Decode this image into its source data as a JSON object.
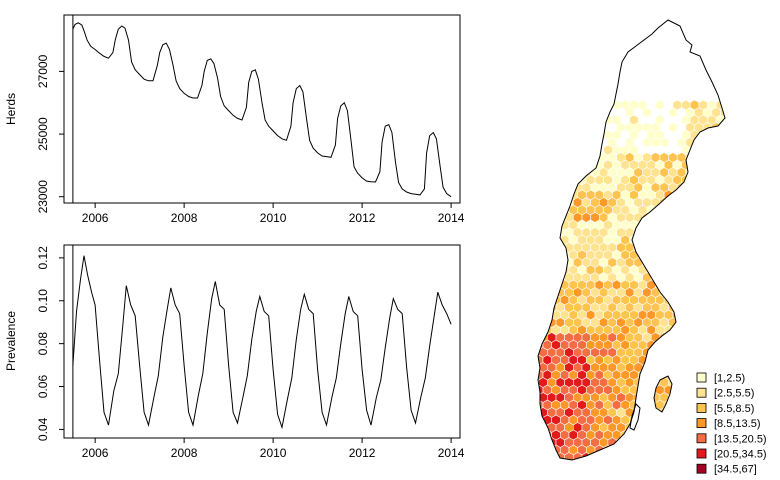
{
  "chart_data": [
    {
      "type": "line",
      "title": "",
      "xlabel": "",
      "ylabel": "Herds",
      "xlim": [
        2005.3,
        2014.2
      ],
      "ylim": [
        22800,
        28800
      ],
      "xticks": [
        2006,
        2008,
        2010,
        2012,
        2014
      ],
      "xtick_labels": [
        "2006",
        "2008",
        "2010",
        "2012",
        "2014"
      ],
      "yticks": [
        23000,
        25000,
        27000
      ],
      "ytick_labels": [
        "23000",
        "25000",
        "27000"
      ],
      "vline": 2005.5,
      "series": [
        {
          "color": "#000000",
          "x": [
            2005.5,
            2005.55,
            2005.62,
            2005.7,
            2005.75,
            2005.82,
            2005.9,
            2006.0,
            2006.1,
            2006.2,
            2006.3,
            2006.4,
            2006.45,
            2006.52,
            2006.6,
            2006.67,
            2006.75,
            2006.82,
            2006.9,
            2007.0,
            2007.1,
            2007.2,
            2007.3,
            2007.4,
            2007.45,
            2007.52,
            2007.6,
            2007.67,
            2007.75,
            2007.82,
            2007.9,
            2008.0,
            2008.1,
            2008.2,
            2008.3,
            2008.4,
            2008.45,
            2008.52,
            2008.6,
            2008.67,
            2008.75,
            2008.82,
            2008.9,
            2009.0,
            2009.1,
            2009.2,
            2009.3,
            2009.4,
            2009.45,
            2009.52,
            2009.6,
            2009.67,
            2009.75,
            2009.82,
            2009.9,
            2010.0,
            2010.1,
            2010.2,
            2010.3,
            2010.4,
            2010.45,
            2010.52,
            2010.6,
            2010.67,
            2010.75,
            2010.82,
            2010.9,
            2011.0,
            2011.1,
            2011.2,
            2011.3,
            2011.4,
            2011.45,
            2011.52,
            2011.6,
            2011.67,
            2011.75,
            2011.82,
            2011.9,
            2012.0,
            2012.1,
            2012.2,
            2012.3,
            2012.4,
            2012.45,
            2012.52,
            2012.6,
            2012.67,
            2012.75,
            2012.82,
            2012.9,
            2013.0,
            2013.1,
            2013.2,
            2013.3,
            2013.4,
            2013.45,
            2013.52,
            2013.6,
            2013.67,
            2013.75,
            2013.82,
            2013.9,
            2014.0
          ],
          "y": [
            28350,
            28500,
            28550,
            28480,
            28300,
            28000,
            27800,
            27700,
            27580,
            27480,
            27420,
            27600,
            28000,
            28350,
            28450,
            28380,
            28000,
            27300,
            27050,
            26900,
            26750,
            26700,
            26700,
            27200,
            27600,
            27850,
            27900,
            27700,
            27200,
            26700,
            26450,
            26300,
            26200,
            26150,
            26150,
            26550,
            27000,
            27350,
            27400,
            27250,
            26800,
            26200,
            25900,
            25750,
            25600,
            25500,
            25450,
            25850,
            26650,
            27000,
            27050,
            26750,
            26000,
            25450,
            25250,
            25100,
            24950,
            24850,
            24800,
            25250,
            26000,
            26450,
            26550,
            26350,
            25500,
            24800,
            24550,
            24400,
            24300,
            24280,
            24260,
            24650,
            25500,
            25900,
            26000,
            25750,
            24800,
            23950,
            23750,
            23600,
            23500,
            23480,
            23470,
            23800,
            24750,
            25250,
            25300,
            25050,
            24100,
            23450,
            23250,
            23150,
            23100,
            23080,
            23060,
            23250,
            24400,
            24950,
            25050,
            24850,
            24000,
            23300,
            23100,
            23000
          ]
        }
      ]
    },
    {
      "type": "line",
      "title": "",
      "xlabel": "",
      "ylabel": "Prevalence",
      "xlim": [
        2005.3,
        2014.2
      ],
      "ylim": [
        0.036,
        0.126
      ],
      "xticks": [
        2006,
        2008,
        2010,
        2012,
        2014
      ],
      "xtick_labels": [
        "2006",
        "2008",
        "2010",
        "2012",
        "2014"
      ],
      "yticks": [
        0.04,
        0.06,
        0.08,
        0.1,
        0.12
      ],
      "ytick_labels": [
        "0.04",
        "0.06",
        "0.08",
        "0.10",
        "0.12"
      ],
      "vline": 2005.5,
      "series": [
        {
          "color": "#000000",
          "x": [
            2005.5,
            2005.58,
            2005.67,
            2005.75,
            2005.83,
            2005.92,
            2006.0,
            2006.1,
            2006.2,
            2006.3,
            2006.42,
            2006.52,
            2006.62,
            2006.7,
            2006.8,
            2006.9,
            2007.0,
            2007.1,
            2007.2,
            2007.32,
            2007.42,
            2007.52,
            2007.62,
            2007.7,
            2007.8,
            2007.9,
            2008.0,
            2008.1,
            2008.2,
            2008.32,
            2008.42,
            2008.52,
            2008.62,
            2008.7,
            2008.8,
            2008.9,
            2009.0,
            2009.1,
            2009.2,
            2009.32,
            2009.42,
            2009.52,
            2009.62,
            2009.7,
            2009.8,
            2009.9,
            2010.0,
            2010.1,
            2010.2,
            2010.32,
            2010.42,
            2010.52,
            2010.62,
            2010.7,
            2010.8,
            2010.9,
            2011.0,
            2011.1,
            2011.2,
            2011.32,
            2011.42,
            2011.52,
            2011.62,
            2011.7,
            2011.8,
            2011.9,
            2012.0,
            2012.1,
            2012.2,
            2012.32,
            2012.42,
            2012.52,
            2012.62,
            2012.7,
            2012.8,
            2012.9,
            2013.0,
            2013.1,
            2013.2,
            2013.32,
            2013.42,
            2013.52,
            2013.62,
            2013.7,
            2013.8,
            2013.9,
            2014.0
          ],
          "y": [
            0.07,
            0.095,
            0.11,
            0.121,
            0.112,
            0.104,
            0.098,
            0.072,
            0.048,
            0.042,
            0.058,
            0.066,
            0.088,
            0.107,
            0.098,
            0.093,
            0.07,
            0.048,
            0.042,
            0.055,
            0.065,
            0.083,
            0.096,
            0.106,
            0.098,
            0.094,
            0.07,
            0.048,
            0.042,
            0.056,
            0.066,
            0.085,
            0.101,
            0.109,
            0.098,
            0.096,
            0.07,
            0.048,
            0.043,
            0.055,
            0.065,
            0.082,
            0.095,
            0.102,
            0.095,
            0.093,
            0.068,
            0.047,
            0.041,
            0.054,
            0.064,
            0.082,
            0.096,
            0.103,
            0.096,
            0.094,
            0.068,
            0.048,
            0.042,
            0.055,
            0.064,
            0.08,
            0.094,
            0.102,
            0.095,
            0.093,
            0.068,
            0.049,
            0.042,
            0.055,
            0.063,
            0.078,
            0.092,
            0.101,
            0.096,
            0.094,
            0.069,
            0.049,
            0.043,
            0.055,
            0.064,
            0.079,
            0.093,
            0.104,
            0.098,
            0.094,
            0.089
          ]
        }
      ]
    },
    {
      "type": "heatmap",
      "title": "",
      "legend_position": "bottom-right",
      "legend": [
        {
          "label": "[1,2.5)",
          "color": "#ffffcc"
        },
        {
          "label": "[2.5,5.5)",
          "color": "#fee391"
        },
        {
          "label": "[5.5,8.5)",
          "color": "#fec44f"
        },
        {
          "label": "[8.5,13.5)",
          "color": "#fe9929"
        },
        {
          "label": "[13.5,20.5)",
          "color": "#f46d43"
        },
        {
          "label": "[20.5,34.5)",
          "color": "#e31a1c"
        },
        {
          "label": "[34.5,67]",
          "color": "#a50026"
        }
      ]
    }
  ]
}
